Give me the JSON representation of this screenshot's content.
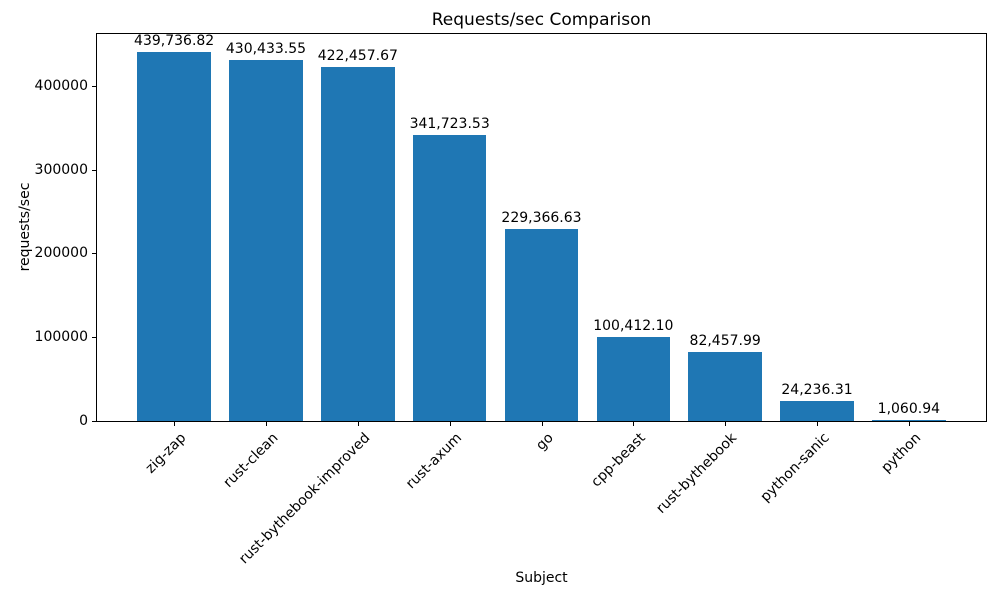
{
  "chart_data": {
    "type": "bar",
    "title": "Requests/sec Comparison",
    "xlabel": "Subject",
    "ylabel": "requests/sec",
    "categories": [
      "zig-zap",
      "rust-clean",
      "rust-bythebook-improved",
      "rust-axum",
      "go",
      "cpp-beast",
      "rust-bythebook",
      "python-sanic",
      "python"
    ],
    "values": [
      439736.82,
      430433.55,
      422457.67,
      341723.53,
      229366.63,
      100412.1,
      82457.99,
      24236.31,
      1060.94
    ],
    "bar_labels": [
      "439,736.82",
      "430,433.55",
      "422,457.67",
      "341,723.53",
      "229,366.63",
      "100,412.10",
      "82,457.99",
      "24,236.31",
      "1,060.94"
    ],
    "yticks": [
      0,
      100000,
      200000,
      300000,
      400000
    ],
    "ytick_labels": [
      "0",
      "100000",
      "200000",
      "300000",
      "400000"
    ],
    "ylim": [
      0,
      461723.66
    ],
    "bar_color": "#1f77b4",
    "axis_color": "#000000",
    "text_color": "#000000",
    "grid": false,
    "legend": null,
    "xtick_rotation_deg": 45
  }
}
